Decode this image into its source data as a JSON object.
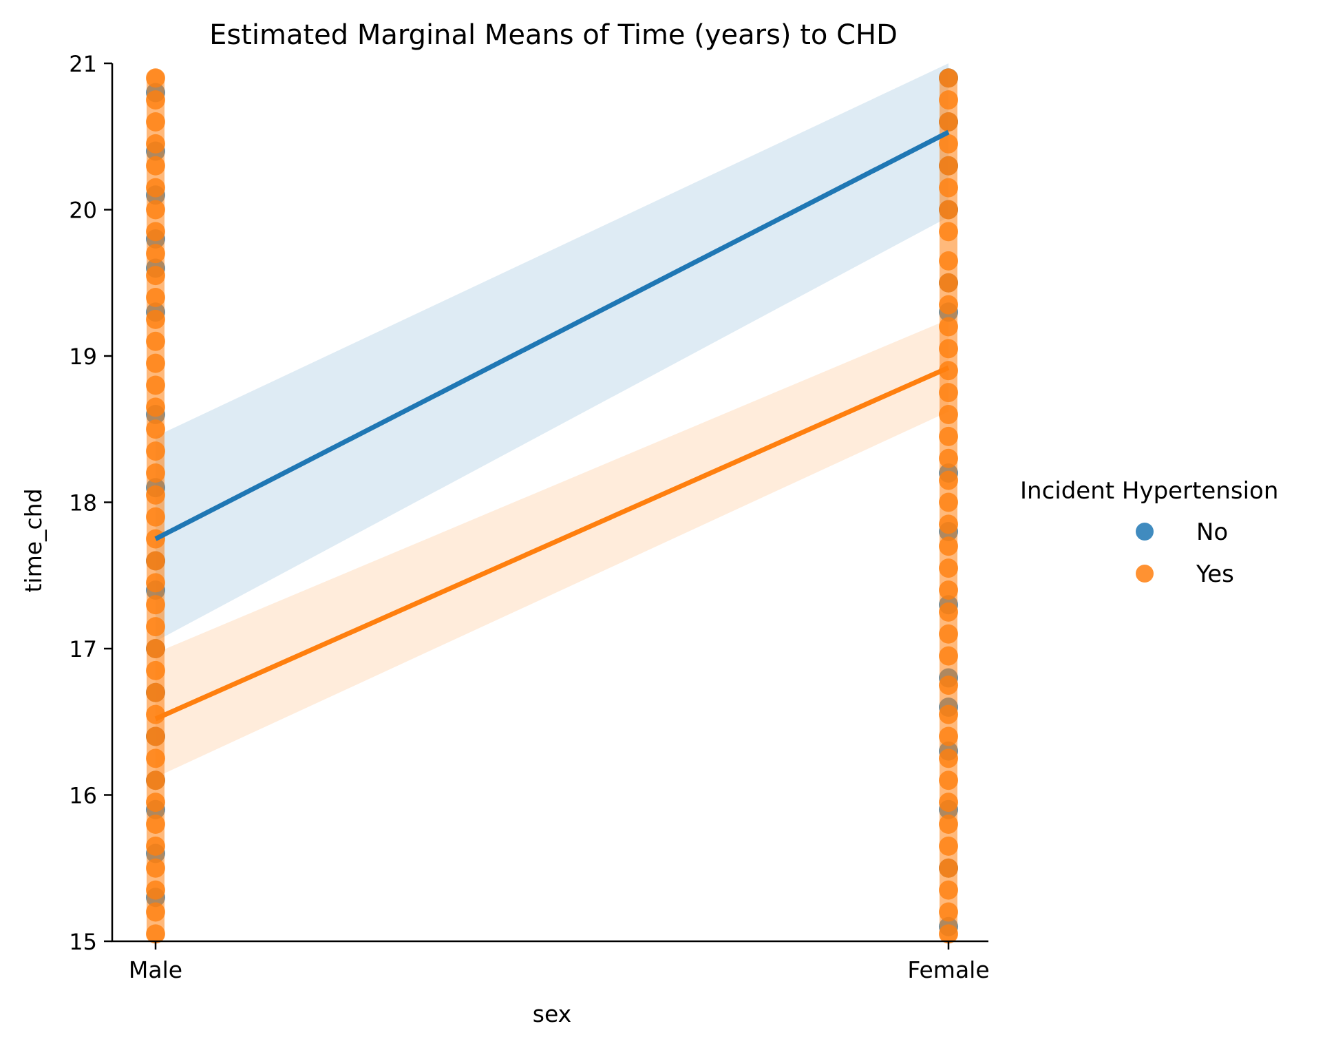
{
  "chart_data": {
    "type": "scatter",
    "title": "Estimated Marginal Means of Time (years) to CHD",
    "xlabel": "sex",
    "ylabel": "time_chd",
    "categories": [
      "Male",
      "Female"
    ],
    "ylim": [
      15,
      21
    ],
    "yticks": [
      "15",
      "16",
      "17",
      "18",
      "19",
      "20",
      "21"
    ],
    "grid": false,
    "legend": {
      "title": "Incident Hypertension",
      "placement": "right"
    },
    "series": [
      {
        "name": "No",
        "color": "#1f77b4",
        "fit": {
          "Male": 17.75,
          "Female": 20.53
        },
        "ci_low": {
          "Male": 17.05,
          "Female": 19.95
        },
        "ci_high": {
          "Male": 18.45,
          "Female": 21.08
        },
        "points": {
          "Male": [
            15.3,
            15.6,
            15.9,
            16.1,
            16.4,
            16.7,
            17.0,
            17.4,
            17.6,
            18.1,
            18.6,
            19.3,
            19.6,
            19.8,
            20.1,
            20.4,
            20.8
          ],
          "Female": [
            15.1,
            15.5,
            15.9,
            16.3,
            16.6,
            16.8,
            17.3,
            17.8,
            18.2,
            19.3,
            19.5,
            20.0,
            20.3,
            20.6,
            20.9
          ]
        }
      },
      {
        "name": "Yes",
        "color": "#ff7f0e",
        "fit": {
          "Male": 16.52,
          "Female": 18.92
        },
        "ci_low": {
          "Male": 16.12,
          "Female": 18.62
        },
        "ci_high": {
          "Male": 16.97,
          "Female": 19.25
        },
        "points": {
          "Male": [
            15.05,
            15.2,
            15.35,
            15.5,
            15.65,
            15.8,
            15.95,
            16.1,
            16.25,
            16.4,
            16.55,
            16.7,
            16.85,
            17.0,
            17.15,
            17.3,
            17.45,
            17.6,
            17.75,
            17.9,
            18.05,
            18.2,
            18.35,
            18.5,
            18.65,
            18.8,
            18.95,
            19.1,
            19.25,
            19.4,
            19.55,
            19.7,
            19.85,
            20.0,
            20.15,
            20.3,
            20.45,
            20.6,
            20.75,
            20.9
          ],
          "Female": [
            15.05,
            15.2,
            15.35,
            15.5,
            15.65,
            15.8,
            15.95,
            16.1,
            16.25,
            16.4,
            16.55,
            16.75,
            16.95,
            17.1,
            17.25,
            17.4,
            17.55,
            17.7,
            17.85,
            18.0,
            18.15,
            18.3,
            18.45,
            18.6,
            18.75,
            18.9,
            19.05,
            19.2,
            19.35,
            19.5,
            19.65,
            19.85,
            20.0,
            20.15,
            20.3,
            20.45,
            20.6,
            20.75,
            20.9
          ]
        }
      }
    ]
  }
}
